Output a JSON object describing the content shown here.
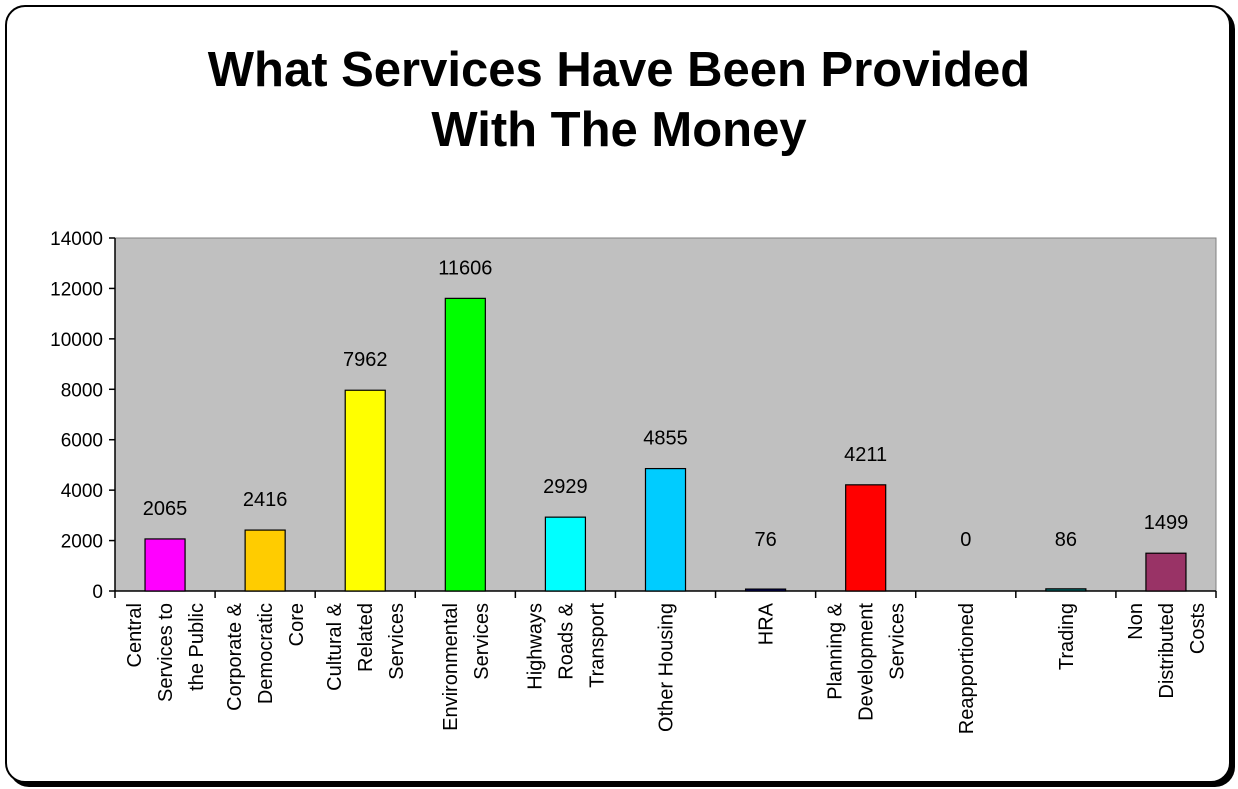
{
  "chart_data": {
    "type": "bar",
    "title_lines": [
      "What Services Have Been Provided",
      "With The Money"
    ],
    "categories": [
      [
        "Central",
        "Services to",
        "the Public"
      ],
      [
        "Corporate &",
        "Democratic",
        "Core"
      ],
      [
        "Cultural &",
        "Related",
        "Services"
      ],
      [
        "Environmental",
        "Services"
      ],
      [
        "Highways",
        "Roads &",
        "Transport"
      ],
      [
        "Other Housing"
      ],
      [
        "HRA"
      ],
      [
        "Planning &",
        "Development",
        "Services"
      ],
      [
        "Reapportioned"
      ],
      [
        "Trading"
      ],
      [
        "Non",
        "Distributed",
        "Costs"
      ]
    ],
    "values": [
      2065,
      2416,
      7962,
      11606,
      2929,
      4855,
      76,
      4211,
      0,
      86,
      1499
    ],
    "data_labels": [
      "2065",
      "2416",
      "7962",
      "11606",
      "2929",
      "4855",
      "76",
      "4211",
      "0",
      "86",
      "1499"
    ],
    "colors": [
      "#ff00ff",
      "#ffcc00",
      "#ffff00",
      "#00ff00",
      "#00ffff",
      "#00ccff",
      "#000080",
      "#ff0000",
      "#800080",
      "#008080",
      "#993366"
    ],
    "ylim": [
      0,
      14000
    ],
    "yticks": [
      0,
      2000,
      4000,
      6000,
      8000,
      10000,
      12000,
      14000
    ],
    "plot_background": "#c0c0c0",
    "grid": false,
    "legend": "none"
  }
}
